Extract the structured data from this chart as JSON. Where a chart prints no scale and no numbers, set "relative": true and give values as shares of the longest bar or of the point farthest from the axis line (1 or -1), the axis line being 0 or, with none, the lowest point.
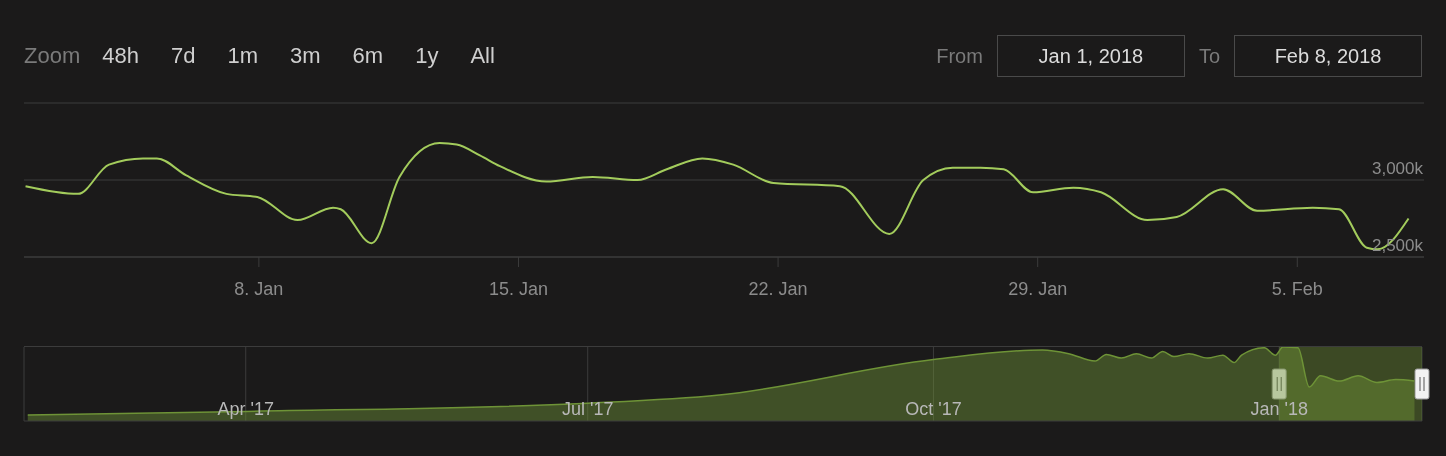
{
  "chart_data": [
    {
      "type": "line",
      "annotations": [
        "Zoom",
        "48h",
        "7d",
        "1m",
        "3m",
        "6m",
        "1y",
        "All",
        "From",
        "Jan 1, 2018",
        "To",
        "Feb 8, 2018"
      ],
      "xlim": [
        "2018-01-01T16:00",
        "2018-02-08T10:00"
      ],
      "xticks": [
        {
          "value": "2018-01-08",
          "label": "8. Jan"
        },
        {
          "value": "2018-01-15",
          "label": "15. Jan"
        },
        {
          "value": "2018-01-22",
          "label": "22. Jan"
        },
        {
          "value": "2018-01-29",
          "label": "29. Jan"
        },
        {
          "value": "2018-02-05",
          "label": "5. Feb"
        }
      ],
      "ylim": [
        2500,
        3500
      ],
      "yticks": [
        {
          "value": 2500,
          "label": "2,500k"
        },
        {
          "value": 3000,
          "label": "3,000k"
        },
        {
          "value": 3500,
          "label": null
        }
      ],
      "grid": "y",
      "marker": "none",
      "series": [
        {
          "color": "#a3cc5c",
          "x": [
            "2018-01-01T17:00",
            "2018-01-03T03:00",
            "2018-01-03T23:00",
            "2018-01-04T21:00",
            "2018-01-05T06:00",
            "2018-01-06T01:00",
            "2018-01-07T03:00",
            "2018-01-07T23:00",
            "2018-01-09T01:00",
            "2018-01-10T00:00",
            "2018-01-10T05:00",
            "2018-01-11T01:00",
            "2018-01-11T19:00",
            "2018-01-12T21:00",
            "2018-01-13T08:00",
            "2018-01-13T23:00",
            "2018-01-14T12:00",
            "2018-01-15T18:00",
            "2018-01-17T00:00",
            "2018-01-18T05:00",
            "2018-01-19T00:00",
            "2018-01-19T23:00",
            "2018-01-20T19:00",
            "2018-01-21T21:00",
            "2018-01-23T16:00",
            "2018-01-25T00:00",
            "2018-01-25T22:00",
            "2018-01-26T17:00",
            "2018-01-27T11:00",
            "2018-01-28T02:00",
            "2018-01-28T21:00",
            "2018-01-29T23:00",
            "2018-01-30T17:00",
            "2018-01-31T23:00",
            "2018-02-01T18:00",
            "2018-02-03T00:00",
            "2018-02-03T22:00",
            "2018-02-05T10:00",
            "2018-02-06T03:00",
            "2018-02-06T21:00",
            "2018-02-07T04:00",
            "2018-02-08T00:00"
          ],
          "values": [
            2960,
            2910,
            3100,
            3140,
            3140,
            3030,
            2910,
            2890,
            2740,
            2820,
            2810,
            2590,
            3020,
            3240,
            3230,
            3160,
            3090,
            2990,
            3020,
            3000,
            3070,
            3140,
            3100,
            2980,
            2960,
            2650,
            3000,
            3080,
            3080,
            3070,
            2920,
            2950,
            2920,
            2740,
            2760,
            2940,
            2800,
            2820,
            2810,
            2560,
            2550,
            2750
          ]
        }
      ]
    },
    {
      "type": "area",
      "relative": true,
      "xlim": [
        "2017-02-01",
        "2018-02-08"
      ],
      "xticks": [
        {
          "value": "2017-04-01",
          "label": "Apr '17"
        },
        {
          "value": "2017-07-01",
          "label": "Jul '17"
        },
        {
          "value": "2017-10-01",
          "label": "Oct '17"
        },
        {
          "value": "2018-01-01",
          "label": "Jan '18"
        }
      ],
      "grid": "x",
      "bands": [
        {
          "axis": "x",
          "from": "2018-01-01",
          "to": "2018-02-08",
          "color": "#7aa33a"
        }
      ],
      "series": [
        {
          "color": "#6e9337",
          "x": [
            "2017-02-02",
            "2017-04-01",
            "2017-07-01",
            "2017-08-05",
            "2017-10-01",
            "2017-10-30",
            "2017-11-06",
            "2017-11-13",
            "2017-11-16",
            "2017-11-20",
            "2017-11-24",
            "2017-11-28",
            "2017-12-01",
            "2017-12-04",
            "2017-12-08",
            "2017-12-13",
            "2017-12-17",
            "2017-12-20",
            "2017-12-22",
            "2017-12-28",
            "2017-12-31",
            "2018-01-02",
            "2018-01-06",
            "2018-01-09",
            "2018-01-12",
            "2018-01-17",
            "2018-01-22",
            "2018-01-27",
            "2018-02-01",
            "2018-02-06"
          ],
          "values": [
            0.08,
            0.13,
            0.24,
            0.35,
            0.83,
            0.96,
            0.91,
            0.81,
            0.9,
            0.85,
            0.91,
            0.85,
            0.94,
            0.87,
            0.91,
            0.85,
            0.89,
            0.79,
            0.89,
            0.99,
            0.89,
            1,
            0.99,
            0.46,
            0.61,
            0.54,
            0.61,
            0.52,
            0.56,
            0.54
          ]
        }
      ]
    }
  ]
}
